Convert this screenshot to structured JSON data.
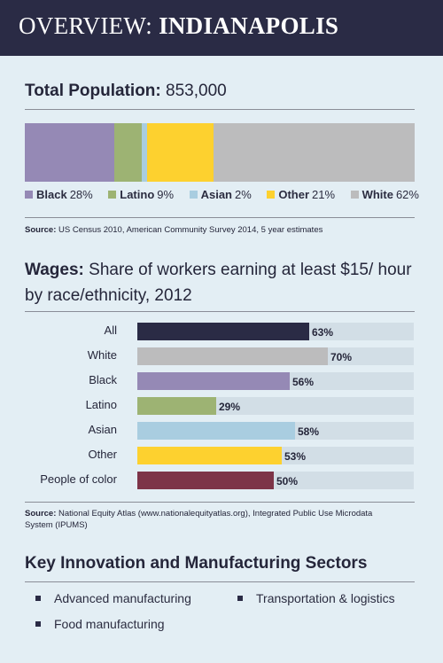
{
  "header": {
    "title_prefix": "OVERVIEW:",
    "title_city": "INDIANAPOLIS"
  },
  "population": {
    "label": "Total Population:",
    "value": "853,000",
    "source_label": "Source:",
    "source_text": "US Census 2010, American Community Survey 2014, 5 year estimates"
  },
  "wages": {
    "title_bold": "Wages:",
    "title_rest": "Share of workers earning at least $15/ hour by race/ethnicity, 2012",
    "source_label": "Source:",
    "source_text": "National Equity Atlas (www.nationalequityatlas.org), Integrated Public Use Microdata System (IPUMS)"
  },
  "sectors": {
    "title": "Key Innovation and Manufacturing Sectors",
    "items": [
      "Advanced manufacturing",
      "Transportation & logistics",
      "Food manufacturing"
    ]
  },
  "chart_data": [
    {
      "type": "bar",
      "orientation": "stacked-horizontal",
      "categories": [
        "Black",
        "Latino",
        "Asian",
        "Other",
        "White"
      ],
      "values": [
        28,
        9,
        2,
        21,
        62
      ],
      "value_labels": [
        "28%",
        "9%",
        "2%",
        "21%",
        "62%"
      ],
      "colors": [
        "#9589b5",
        "#9db373",
        "#a9cde0",
        "#fdd12f",
        "#bcbcbd"
      ],
      "bar_widths_percent": [
        23,
        7,
        1.4,
        17,
        51.6
      ],
      "legend_position": "bottom"
    },
    {
      "type": "bar",
      "orientation": "horizontal",
      "categories": [
        "All",
        "White",
        "Black",
        "Latino",
        "Asian",
        "Other",
        "People of color"
      ],
      "values": [
        63,
        70,
        56,
        29,
        58,
        53,
        50
      ],
      "value_labels": [
        "63%",
        "70%",
        "56%",
        "29%",
        "58%",
        "53%",
        "50%"
      ],
      "colors": [
        "#2a2b45",
        "#bcbcbd",
        "#9589b5",
        "#9db373",
        "#a9cde0",
        "#fdd12f",
        "#7d3448"
      ],
      "xlim": [
        0,
        100
      ],
      "grid": false
    }
  ]
}
